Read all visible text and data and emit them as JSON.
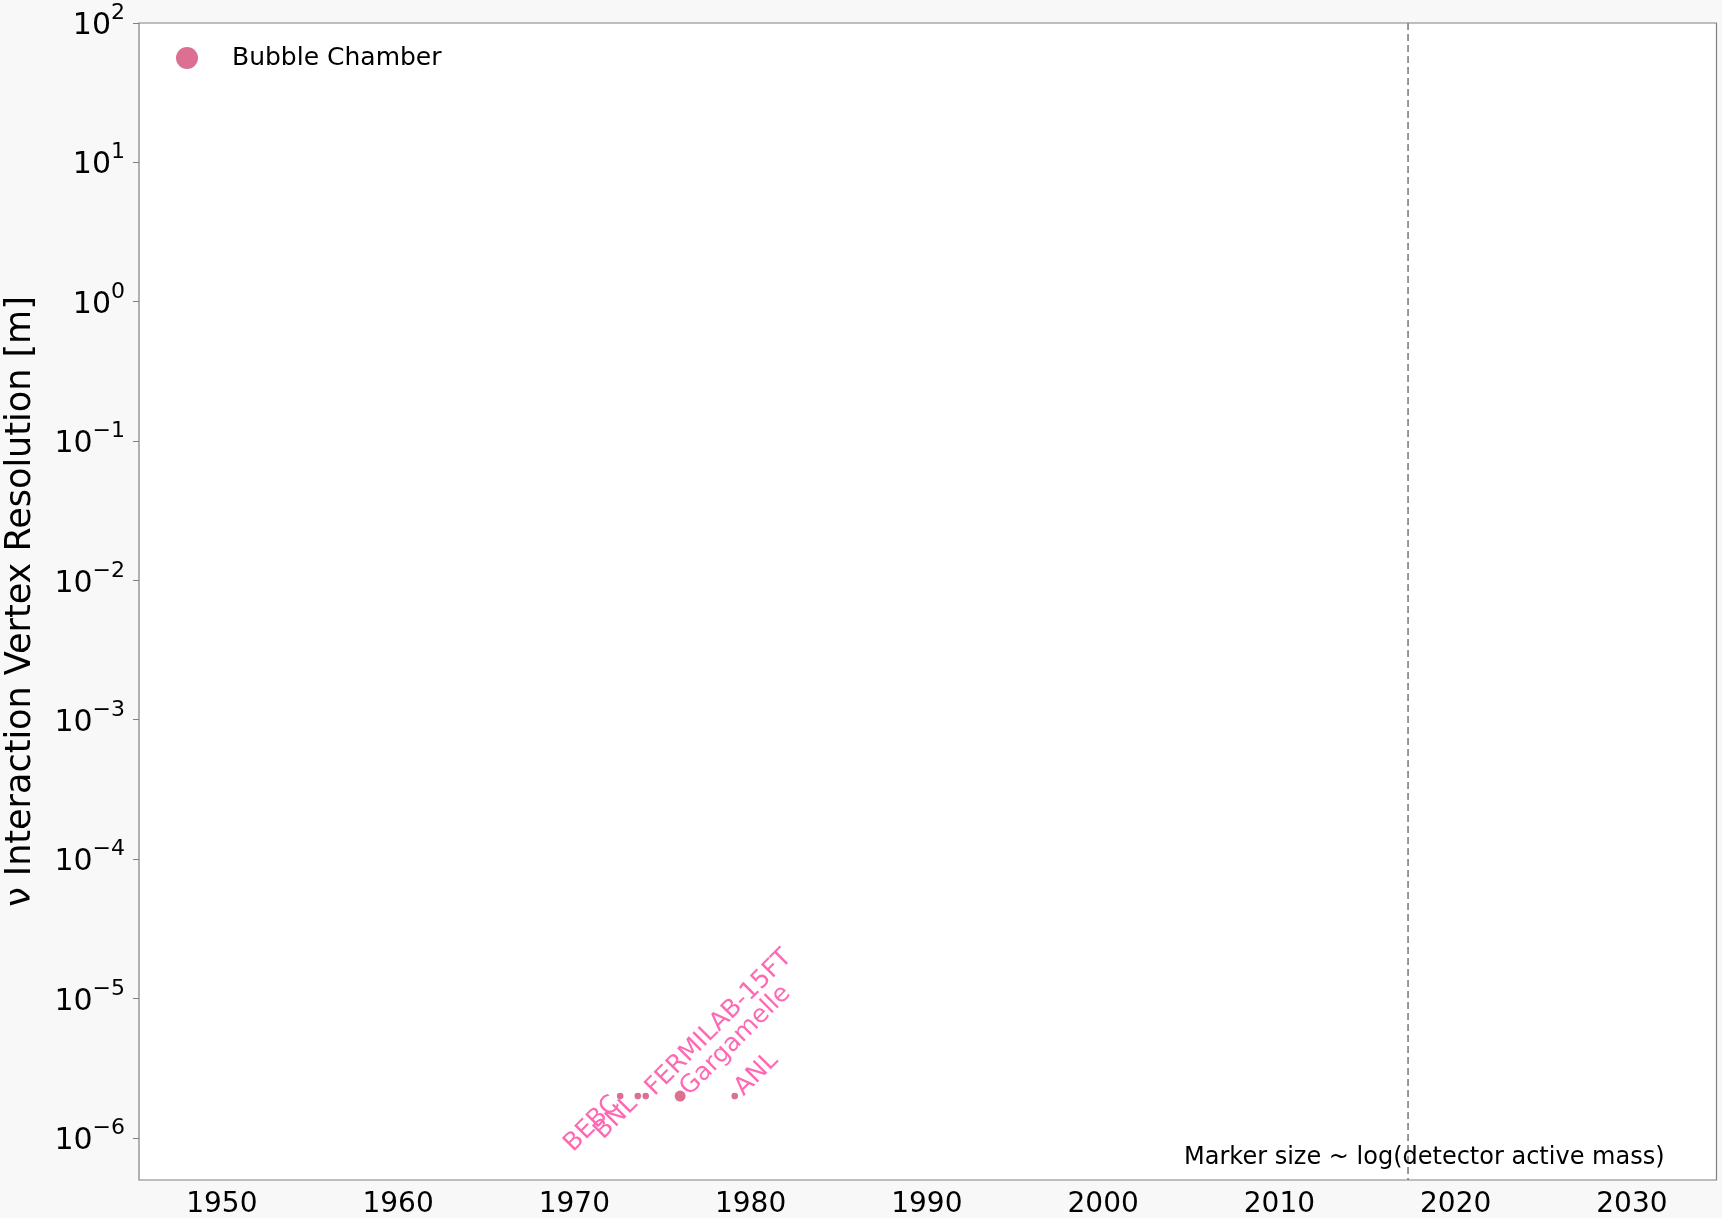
{
  "chart_data": {
    "type": "bubble",
    "ylabel": "ν Interaction Vertex Resolution [m]",
    "series": [
      {
        "name": "Bubble Chamber",
        "color": "#db7093",
        "x": [
          1972.6,
          1973.6,
          1974.05,
          1976.0,
          1979.1
        ],
        "values": [
          2e-06,
          2e-06,
          2e-06,
          2e-06,
          2e-06
        ],
        "sizes": [
          0.36,
          0.36,
          0.36,
          1,
          0.36
        ]
      }
    ],
    "xlim": [
      1945.3,
      2034.8
    ],
    "xticks": [
      1950,
      1960,
      1970,
      1980,
      1990,
      2000,
      2010,
      2020,
      2030
    ],
    "ylim": [
      5e-07,
      100
    ],
    "log": "y",
    "yticks": [
      {
        "value": 1e-06,
        "label": "10$^{−6}$"
      },
      {
        "value": 1e-05,
        "label": "10$^{−5}$"
      },
      {
        "value": 0.0001,
        "label": "10$^{−4}$"
      },
      {
        "value": 0.001,
        "label": "10$^{−3}$"
      },
      {
        "value": 0.01,
        "label": "10$^{−2}$"
      },
      {
        "value": 0.1,
        "label": "10$^{−1}$"
      },
      {
        "value": 1,
        "label": "10$^{0}$"
      },
      {
        "value": 10,
        "label": "10$^{1}$"
      },
      {
        "value": 100,
        "label": "10$^{2}$"
      }
    ],
    "ref_lines": [
      {
        "axis": "x",
        "value": 2017.3,
        "color": "#808080",
        "line_style": "dashed"
      }
    ],
    "legend": "top left",
    "grid": false,
    "annotations": [
      {
        "text": "BEBC",
        "x": 1972.6,
        "y": 2e-06
      },
      {
        "text": "BNL",
        "x": 1973.6,
        "y": 2e-06
      },
      {
        "text": "FERMILAB-15FT",
        "x": 1974.05,
        "y": 2e-06
      },
      {
        "text": "Gargamelle",
        "x": 1976.0,
        "y": 2e-06
      },
      {
        "text": "ANL",
        "x": 1979.1,
        "y": 2e-06
      },
      "Marker size ~ log(detector active mass)"
    ]
  }
}
